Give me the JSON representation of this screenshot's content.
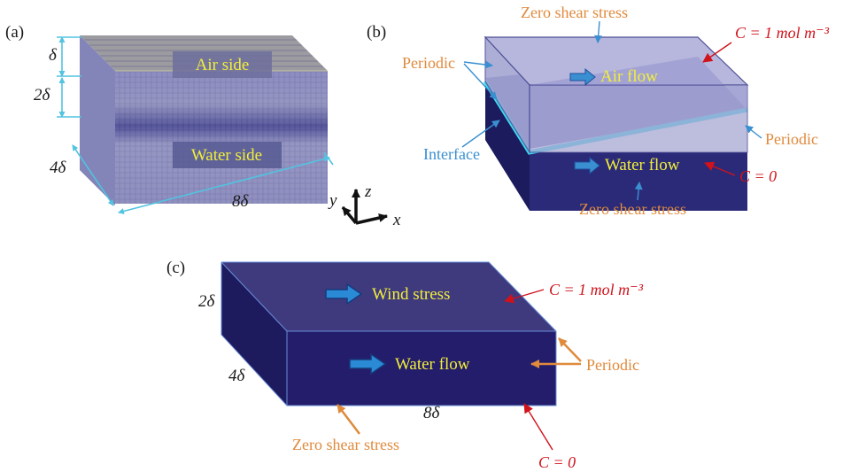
{
  "panel_a": {
    "tag": "(a)",
    "air_side": "Air side",
    "water_side": "Water side",
    "dim_delta": "δ",
    "dim_2delta": "2δ",
    "dim_4delta": "4δ",
    "dim_8delta": "8δ"
  },
  "axes": {
    "y": "y",
    "z": "z",
    "x": "x"
  },
  "panel_b": {
    "tag": "(b)",
    "top_bc": "Zero shear stress",
    "top_conc": "C = 1 mol m⁻³",
    "periodic_left": "Periodic",
    "air_flow": "Air flow",
    "interface": "Interface",
    "water_flow": "Water flow",
    "periodic_right": "Periodic",
    "bottom_conc": "C = 0",
    "bottom_bc": "Zero shear stress"
  },
  "panel_c": {
    "tag": "(c)",
    "dim_2delta": "2δ",
    "dim_4delta": "4δ",
    "dim_8delta": "8δ",
    "wind_stress": "Wind stress",
    "water_flow": "Water flow",
    "top_conc": "C = 1 mol m⁻³",
    "periodic": "Periodic",
    "bottom_bc": "Zero shear stress",
    "bottom_conc": "C = 0"
  },
  "colors": {
    "cyan_dim": "#52c3e0",
    "orange": "#e08a3c",
    "red": "#d0121b",
    "blue_label": "#3a8fd0",
    "yellow": "#f2ee3a",
    "deep_navy": "#241d6b",
    "top_navy": "#3f3a7e"
  }
}
